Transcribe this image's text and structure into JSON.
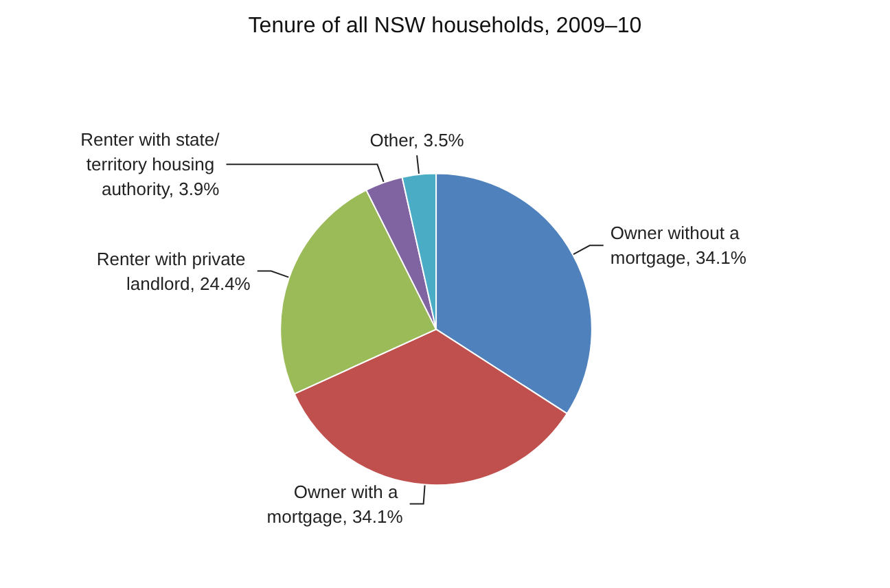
{
  "chart_data": {
    "type": "pie",
    "title": "Tenure of all NSW households, 2009–10",
    "categories": [
      "Owner without a mortgage",
      "Owner with a mortgage",
      "Renter with private landlord",
      "Renter with state/territory housing authority",
      "Other"
    ],
    "values": [
      34.1,
      34.1,
      24.4,
      3.9,
      3.5
    ],
    "colors": [
      "#4f81bd",
      "#c0504d",
      "#9bbb59",
      "#8064a2",
      "#4bacc6"
    ],
    "value_labels": [
      "34.1%",
      "34.1%",
      "24.4%",
      "3.9%",
      "3.5%"
    ],
    "legend": false
  }
}
